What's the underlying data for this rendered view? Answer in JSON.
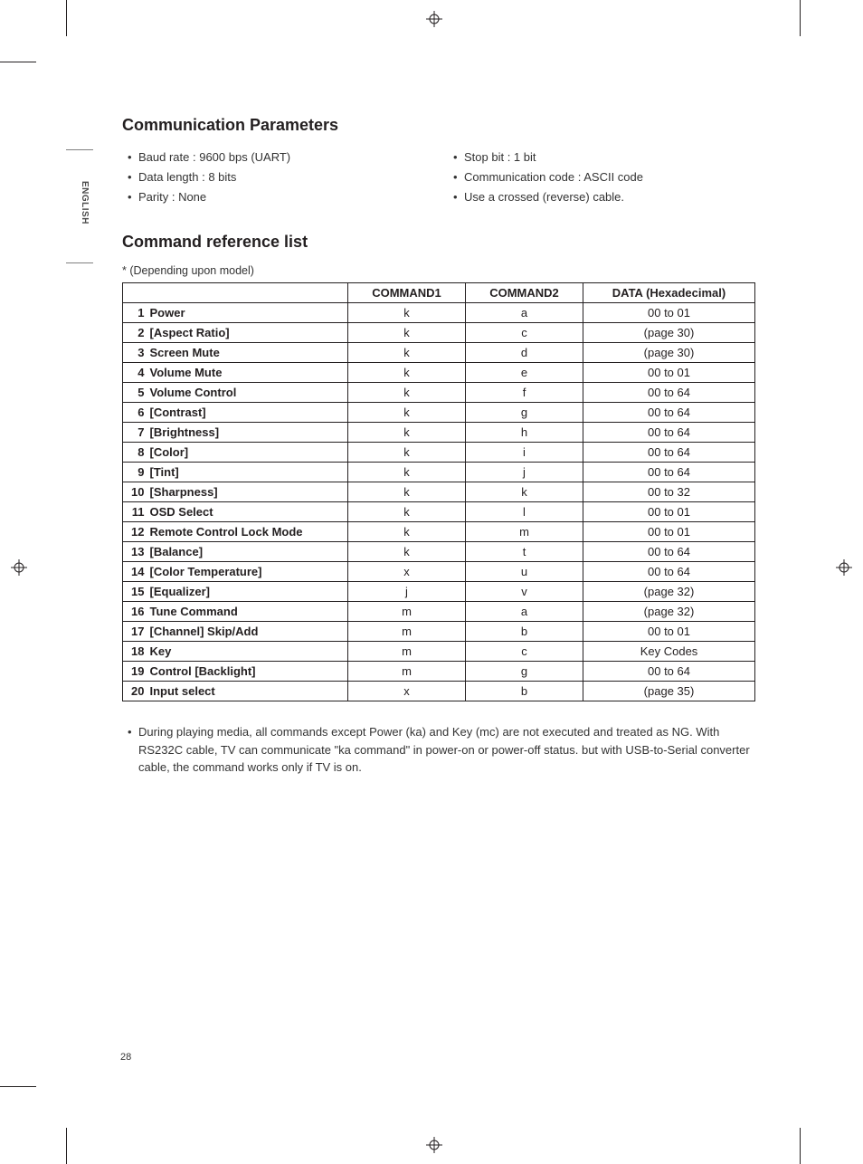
{
  "lang_tab": "ENGLISH",
  "page_number": "28",
  "section1_title": "Communication Parameters",
  "params_left": [
    "Baud rate : 9600 bps (UART)",
    "Data length : 8 bits",
    "Parity : None"
  ],
  "params_right": [
    "Stop bit : 1 bit",
    "Communication code : ASCII code",
    "Use a crossed (reverse) cable."
  ],
  "section2_title": "Command reference list",
  "depending_note": "*  (Depending upon model)",
  "table": {
    "headers": [
      "COMMAND1",
      "COMMAND2",
      "DATA (Hexadecimal)"
    ],
    "rows": [
      {
        "n": "1",
        "name": "Power",
        "c1": "k",
        "c2": "a",
        "d": "00 to 01"
      },
      {
        "n": "2",
        "name": "[Aspect Ratio]",
        "c1": "k",
        "c2": "c",
        "d": "(page 30)"
      },
      {
        "n": "3",
        "name": "Screen Mute",
        "c1": "k",
        "c2": "d",
        "d": "(page 30)"
      },
      {
        "n": "4",
        "name": "Volume Mute",
        "c1": "k",
        "c2": "e",
        "d": "00 to 01"
      },
      {
        "n": "5",
        "name": "Volume Control",
        "c1": "k",
        "c2": "f",
        "d": "00 to 64"
      },
      {
        "n": "6",
        "name": "[Contrast]",
        "c1": "k",
        "c2": "g",
        "d": "00 to 64"
      },
      {
        "n": "7",
        "name": "[Brightness]",
        "c1": "k",
        "c2": "h",
        "d": "00 to 64"
      },
      {
        "n": "8",
        "name": "[Color]",
        "c1": "k",
        "c2": "i",
        "d": "00 to 64"
      },
      {
        "n": "9",
        "name": "[Tint]",
        "c1": "k",
        "c2": "j",
        "d": "00 to 64"
      },
      {
        "n": "10",
        "name": "[Sharpness]",
        "c1": "k",
        "c2": "k",
        "d": "00 to 32"
      },
      {
        "n": "11",
        "name": "OSD Select",
        "c1": "k",
        "c2": "l",
        "d": "00 to 01"
      },
      {
        "n": "12",
        "name": "Remote Control Lock Mode",
        "c1": "k",
        "c2": "m",
        "d": "00 to 01"
      },
      {
        "n": "13",
        "name": "[Balance]",
        "c1": "k",
        "c2": "t",
        "d": "00 to 64"
      },
      {
        "n": "14",
        "name": "[Color Temperature]",
        "c1": "x",
        "c2": "u",
        "d": "00 to 64"
      },
      {
        "n": "15",
        "name": "[Equalizer]",
        "c1": "j",
        "c2": "v",
        "d": "(page 32)"
      },
      {
        "n": "16",
        "name": "Tune Command",
        "c1": "m",
        "c2": "a",
        "d": "(page 32)"
      },
      {
        "n": "17",
        "name": "[Channel] Skip/Add",
        "c1": "m",
        "c2": "b",
        "d": "00 to 01"
      },
      {
        "n": "18",
        "name": "Key",
        "c1": "m",
        "c2": "c",
        "d": "Key Codes"
      },
      {
        "n": "19",
        "name": "Control [Backlight]",
        "c1": "m",
        "c2": "g",
        "d": "00 to 64"
      },
      {
        "n": "20",
        "name": "Input select",
        "c1": "x",
        "c2": "b",
        "d": "(page 35)"
      }
    ]
  },
  "note": "During playing media, all commands except Power (ka) and Key (mc) are not executed and treated as NG. With RS232C cable, TV can communicate \"ka command\" in power-on or power-off status. but with USB-to-Serial converter cable, the command works only if TV is on."
}
